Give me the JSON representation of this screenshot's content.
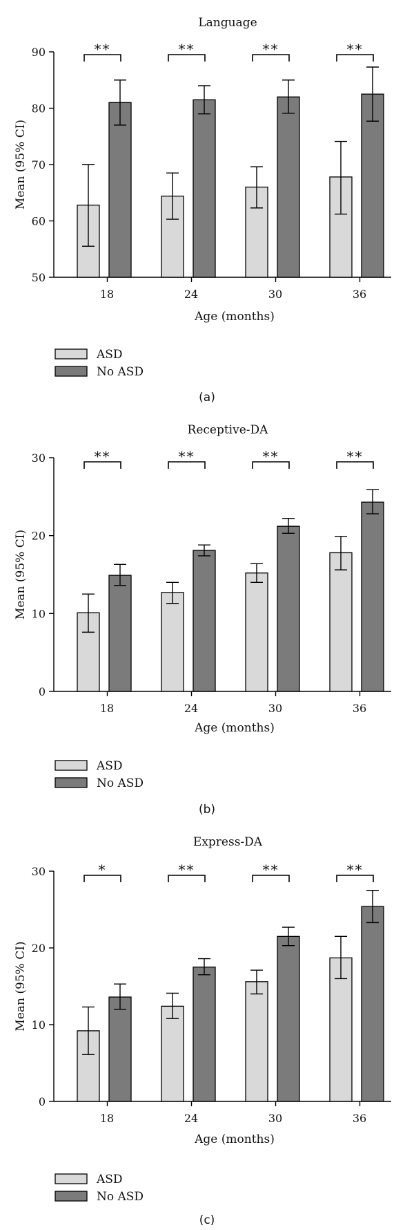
{
  "chart_data": [
    {
      "type": "bar",
      "panel": "(a)",
      "title": "Language",
      "xlabel": "Age (months)",
      "ylabel": "Mean (95% CI)",
      "ylim": [
        50,
        90
      ],
      "yticks": [
        50,
        60,
        70,
        80,
        90
      ],
      "categories": [
        "18",
        "24",
        "30",
        "36"
      ],
      "series": [
        {
          "name": "ASD",
          "color": "#d9d9d9",
          "values": [
            62.8,
            64.4,
            66.0,
            67.8
          ],
          "ci_low": [
            55.5,
            60.3,
            62.3,
            61.2
          ],
          "ci_high": [
            70.0,
            68.5,
            69.6,
            74.1
          ]
        },
        {
          "name": "No ASD",
          "color": "#7b7b7b",
          "values": [
            81.0,
            81.5,
            82.0,
            82.5
          ],
          "ci_low": [
            77.0,
            79.0,
            79.1,
            77.7
          ],
          "ci_high": [
            85.0,
            84.0,
            85.0,
            87.3
          ]
        }
      ],
      "significance": [
        "**",
        "**",
        "**",
        "**"
      ]
    },
    {
      "type": "bar",
      "panel": "(b)",
      "title": "Receptive-DA",
      "xlabel": "Age (months)",
      "ylabel": "Mean (95% CI)",
      "ylim": [
        0,
        30
      ],
      "yticks": [
        0,
        10,
        20,
        30
      ],
      "categories": [
        "18",
        "24",
        "30",
        "36"
      ],
      "series": [
        {
          "name": "ASD",
          "color": "#d9d9d9",
          "values": [
            10.1,
            12.7,
            15.2,
            17.8
          ],
          "ci_low": [
            7.6,
            11.3,
            14.0,
            15.6
          ],
          "ci_high": [
            12.5,
            14.0,
            16.4,
            19.9
          ]
        },
        {
          "name": "No ASD",
          "color": "#7b7b7b",
          "values": [
            14.9,
            18.1,
            21.2,
            24.3
          ],
          "ci_low": [
            13.6,
            17.4,
            20.3,
            22.8
          ],
          "ci_high": [
            16.3,
            18.8,
            22.2,
            25.9
          ]
        }
      ],
      "significance": [
        "**",
        "**",
        "**",
        "**"
      ]
    },
    {
      "type": "bar",
      "panel": "(c)",
      "title": "Express-DA",
      "xlabel": "Age (months)",
      "ylabel": "Mean (95% CI)",
      "ylim": [
        0,
        30
      ],
      "yticks": [
        0,
        10,
        20,
        30
      ],
      "categories": [
        "18",
        "24",
        "30",
        "36"
      ],
      "series": [
        {
          "name": "ASD",
          "color": "#d9d9d9",
          "values": [
            9.2,
            12.4,
            15.6,
            18.7
          ],
          "ci_low": [
            6.1,
            10.8,
            14.0,
            16.0
          ],
          "ci_high": [
            12.3,
            14.1,
            17.1,
            21.5
          ]
        },
        {
          "name": "No ASD",
          "color": "#7b7b7b",
          "values": [
            13.6,
            17.5,
            21.5,
            25.4
          ],
          "ci_low": [
            12.0,
            16.5,
            20.3,
            23.3
          ],
          "ci_high": [
            15.3,
            18.6,
            22.7,
            27.5
          ]
        }
      ],
      "significance": [
        "*",
        "**",
        "**",
        "**"
      ]
    }
  ]
}
